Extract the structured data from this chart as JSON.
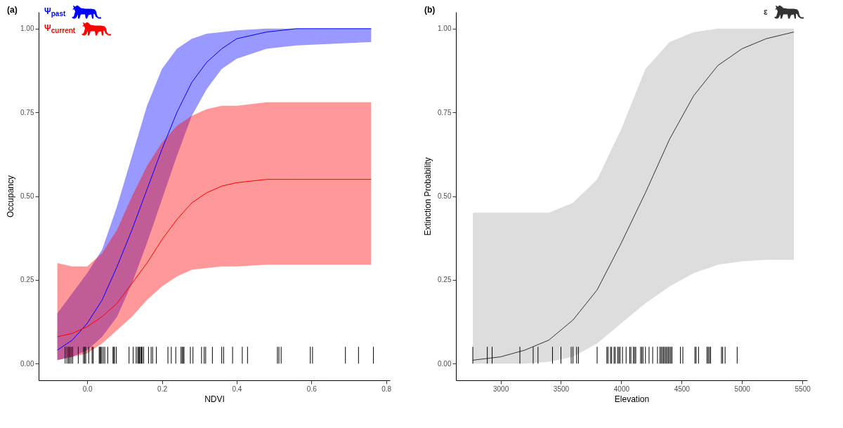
{
  "chart_data": [
    {
      "type": "line",
      "title": "(a)",
      "xlabel": "NDVI",
      "ylabel": "Occupancy",
      "xlim": [
        -0.13,
        0.81
      ],
      "ylim": [
        -0.05,
        1.05
      ],
      "xticks": [
        {
          "value": 0,
          "label": "0.0"
        },
        {
          "value": 0.2,
          "label": "0.2"
        },
        {
          "value": 0.4,
          "label": "0.4"
        },
        {
          "value": 0.6,
          "label": "0.6"
        },
        {
          "value": 0.8,
          "label": "0.8"
        }
      ],
      "yticks": [
        {
          "value": 0,
          "label": "0.00"
        },
        {
          "value": 0.25,
          "label": "0.25"
        },
        {
          "value": 0.5,
          "label": "0.50"
        },
        {
          "value": 0.75,
          "label": "0.75"
        },
        {
          "value": 1,
          "label": "1.00"
        }
      ],
      "grid": false,
      "legend": "top left",
      "series": [
        {
          "name": "Ψ$_{past}$",
          "color": "#0000ff",
          "x": [
            -0.08,
            -0.04,
            0.0,
            0.04,
            0.08,
            0.12,
            0.16,
            0.2,
            0.24,
            0.28,
            0.32,
            0.36,
            0.4,
            0.48,
            0.56,
            0.76
          ],
          "values": [
            0.04,
            0.07,
            0.12,
            0.19,
            0.29,
            0.4,
            0.52,
            0.64,
            0.75,
            0.84,
            0.9,
            0.94,
            0.97,
            0.99,
            1.0,
            1.0
          ],
          "lower": [
            0.01,
            0.02,
            0.04,
            0.08,
            0.14,
            0.24,
            0.36,
            0.49,
            0.62,
            0.74,
            0.82,
            0.88,
            0.91,
            0.94,
            0.95,
            0.96
          ],
          "upper": [
            0.15,
            0.21,
            0.27,
            0.34,
            0.47,
            0.62,
            0.77,
            0.88,
            0.94,
            0.97,
            0.985,
            0.99,
            0.995,
            1.0,
            1.0,
            1.0
          ]
        },
        {
          "name": "Ψ$_{current}$",
          "color": "#ff0000",
          "x": [
            -0.08,
            -0.04,
            0.0,
            0.04,
            0.08,
            0.12,
            0.16,
            0.2,
            0.24,
            0.28,
            0.32,
            0.36,
            0.4,
            0.48,
            0.56,
            0.76
          ],
          "values": [
            0.08,
            0.09,
            0.11,
            0.14,
            0.18,
            0.24,
            0.3,
            0.37,
            0.43,
            0.48,
            0.51,
            0.53,
            0.54,
            0.55,
            0.55,
            0.55
          ],
          "lower": [
            0.01,
            0.02,
            0.03,
            0.06,
            0.1,
            0.14,
            0.19,
            0.23,
            0.26,
            0.28,
            0.285,
            0.29,
            0.29,
            0.295,
            0.295,
            0.295
          ],
          "upper": [
            0.3,
            0.29,
            0.29,
            0.33,
            0.4,
            0.5,
            0.59,
            0.66,
            0.71,
            0.74,
            0.76,
            0.77,
            0.77,
            0.78,
            0.78,
            0.78
          ]
        },
        {
          "type": "bar",
          "color": "#000000",
          "x": [
            -0.059,
            -0.054,
            -0.05,
            -0.047,
            -0.043,
            -0.039,
            -0.024,
            -0.01,
            -0.007,
            -0.004,
            0.004,
            0.013,
            0.016,
            0.032,
            0.034,
            0.036,
            0.039,
            0.043,
            0.047,
            0.055,
            0.069,
            0.071,
            0.073,
            0.078,
            0.112,
            0.123,
            0.131,
            0.135,
            0.138,
            0.14,
            0.143,
            0.145,
            0.147,
            0.151,
            0.164,
            0.171,
            0.175,
            0.185,
            0.216,
            0.225,
            0.237,
            0.251,
            0.254,
            0.257,
            0.259,
            0.276,
            0.283,
            0.306,
            0.313,
            0.317,
            0.335,
            0.36,
            0.365,
            0.389,
            0.415,
            0.429,
            0.509,
            0.513,
            0.519,
            0.597,
            0.603,
            0.691,
            0.726,
            0.766
          ],
          "values": [
            0.05,
            0.05,
            0.05,
            0.05,
            0.05,
            0.05,
            0.05,
            0.05,
            0.05,
            0.05,
            0.05,
            0.05,
            0.05,
            0.05,
            0.05,
            0.05,
            0.05,
            0.05,
            0.05,
            0.05,
            0.05,
            0.05,
            0.05,
            0.05,
            0.05,
            0.05,
            0.05,
            0.05,
            0.05,
            0.05,
            0.05,
            0.05,
            0.05,
            0.05,
            0.05,
            0.05,
            0.05,
            0.05,
            0.05,
            0.05,
            0.05,
            0.05,
            0.05,
            0.05,
            0.05,
            0.05,
            0.05,
            0.05,
            0.05,
            0.05,
            0.05,
            0.05,
            0.05,
            0.05,
            0.05,
            0.05,
            0.05,
            0.05,
            0.05,
            0.05,
            0.05,
            0.05,
            0.05,
            0.05
          ]
        }
      ]
    },
    {
      "type": "line",
      "title": "(b)",
      "xlabel": "Elevation",
      "ylabel": "Extinction Probability",
      "xlim": [
        2630,
        5540
      ],
      "ylim": [
        -0.05,
        1.05
      ],
      "xticks": [
        3000,
        3500,
        4000,
        4500,
        5000,
        5500
      ],
      "yticks": [
        {
          "value": 0,
          "label": "0.00"
        },
        {
          "value": 0.25,
          "label": "0.25"
        },
        {
          "value": 0.5,
          "label": "0.50"
        },
        {
          "value": 0.75,
          "label": "0.75"
        },
        {
          "value": 1,
          "label": "1.00"
        }
      ],
      "grid": false,
      "legend": "top right",
      "series": [
        {
          "name": "ε",
          "color": "#333333",
          "x": [
            2770,
            3000,
            3200,
            3400,
            3600,
            3800,
            4000,
            4200,
            4400,
            4600,
            4800,
            5000,
            5200,
            5430
          ],
          "values": [
            0.01,
            0.02,
            0.04,
            0.07,
            0.13,
            0.22,
            0.36,
            0.51,
            0.67,
            0.8,
            0.89,
            0.94,
            0.97,
            0.99
          ],
          "lower": [
            0.0,
            0.0,
            0.0,
            0.005,
            0.02,
            0.06,
            0.12,
            0.18,
            0.23,
            0.27,
            0.295,
            0.305,
            0.31,
            0.31
          ],
          "upper": [
            0.45,
            0.45,
            0.45,
            0.45,
            0.48,
            0.55,
            0.7,
            0.88,
            0.96,
            0.99,
            1.0,
            1.0,
            1.0,
            1.0
          ]
        },
        {
          "type": "bar",
          "color": "#000000",
          "x": [
            2770,
            2890,
            2930,
            3160,
            3270,
            3310,
            3430,
            3500,
            3585,
            3600,
            3630,
            3645,
            3800,
            3880,
            3890,
            3910,
            3920,
            3940,
            3950,
            3970,
            3980,
            3990,
            4010,
            4040,
            4070,
            4080,
            4100,
            4110,
            4120,
            4160,
            4170,
            4180,
            4200,
            4230,
            4260,
            4300,
            4320,
            4330,
            4340,
            4350,
            4360,
            4370,
            4380,
            4390,
            4400,
            4410,
            4420,
            4490,
            4510,
            4610,
            4620,
            4640,
            4710,
            4720,
            4730,
            4740,
            4830,
            4840,
            4860,
            4960
          ],
          "values": [
            0.05,
            0.05,
            0.05,
            0.05,
            0.05,
            0.05,
            0.05,
            0.05,
            0.05,
            0.05,
            0.05,
            0.05,
            0.05,
            0.05,
            0.05,
            0.05,
            0.05,
            0.05,
            0.05,
            0.05,
            0.05,
            0.05,
            0.05,
            0.05,
            0.05,
            0.05,
            0.05,
            0.05,
            0.05,
            0.05,
            0.05,
            0.05,
            0.05,
            0.05,
            0.05,
            0.05,
            0.05,
            0.05,
            0.05,
            0.05,
            0.05,
            0.05,
            0.05,
            0.05,
            0.05,
            0.05,
            0.05,
            0.05,
            0.05,
            0.05,
            0.05,
            0.05,
            0.05,
            0.05,
            0.05,
            0.05,
            0.05,
            0.05,
            0.05,
            0.05
          ]
        }
      ]
    }
  ]
}
